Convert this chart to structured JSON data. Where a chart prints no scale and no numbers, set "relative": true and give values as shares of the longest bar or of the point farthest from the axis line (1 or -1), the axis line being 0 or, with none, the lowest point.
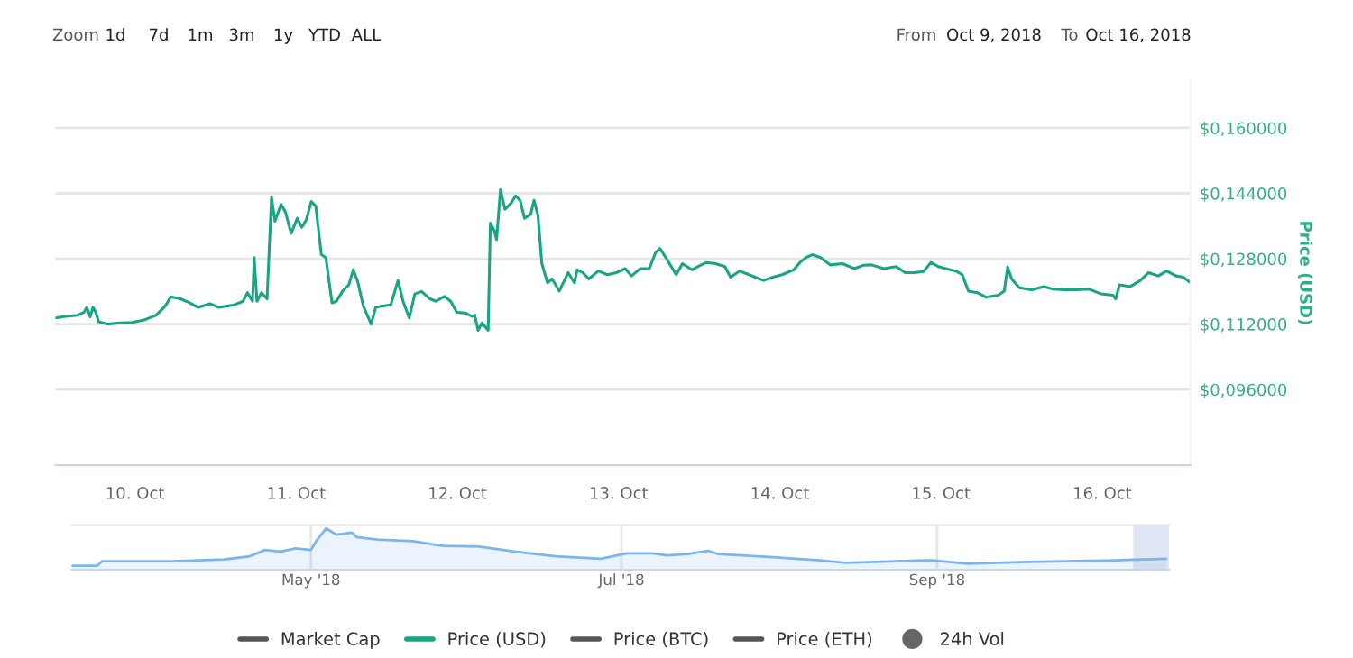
{
  "chart_data": [
    {
      "type": "line",
      "ylabel": "Price (USD)",
      "annotations": [
        "Zoom",
        "1d",
        "7d",
        "1m",
        "3m",
        "1y",
        "YTD",
        "ALL",
        "From",
        "Oct 9, 2018",
        "To",
        "Oct 16, 2018"
      ],
      "x": [
        "2018-10-09T12:10",
        "2018-10-09T13:40",
        "2018-10-09T15:30",
        "2018-10-09T16:25",
        "2018-10-09T16:50",
        "2018-10-09T17:20",
        "2018-10-09T17:45",
        "2018-10-09T18:10",
        "2018-10-09T18:35",
        "2018-10-09T19:55",
        "2018-10-09T21:45",
        "2018-10-09T23:35",
        "2018-10-10T01:20",
        "2018-10-10T03:10",
        "2018-10-10T04:30",
        "2018-10-10T05:20",
        "2018-10-10T06:45",
        "2018-10-10T08:05",
        "2018-10-10T09:25",
        "2018-10-10T11:10",
        "2018-10-10T12:30",
        "2018-10-10T14:45",
        "2018-10-10T16:05",
        "2018-10-10T16:45",
        "2018-10-10T17:30",
        "2018-10-10T17:45",
        "2018-10-10T18:10",
        "2018-10-10T18:50",
        "2018-10-10T19:40",
        "2018-10-10T20:20",
        "2018-10-10T20:50",
        "2018-10-10T21:45",
        "2018-10-10T22:25",
        "2018-10-10T23:15",
        "2018-10-11T00:10",
        "2018-10-11T00:50",
        "2018-10-11T01:30",
        "2018-10-11T02:15",
        "2018-10-11T02:55",
        "2018-10-11T03:45",
        "2018-10-11T04:25",
        "2018-10-11T05:20",
        "2018-10-11T06:00",
        "2018-10-11T06:55",
        "2018-10-11T07:50",
        "2018-10-11T08:30",
        "2018-10-11T09:10",
        "2018-10-11T10:00",
        "2018-10-11T11:10",
        "2018-10-11T11:50",
        "2018-10-11T12:40",
        "2018-10-11T14:05",
        "2018-10-11T15:10",
        "2018-10-11T15:55",
        "2018-10-11T16:50",
        "2018-10-11T17:40",
        "2018-10-11T18:40",
        "2018-10-11T19:55",
        "2018-10-11T20:50",
        "2018-10-11T22:05",
        "2018-10-11T23:00",
        "2018-10-11T23:55",
        "2018-10-12T01:15",
        "2018-10-12T02:10",
        "2018-10-12T02:35",
        "2018-10-12T03:05",
        "2018-10-12T03:40",
        "2018-10-12T04:35",
        "2018-10-12T04:55",
        "2018-10-12T05:30",
        "2018-10-12T05:50",
        "2018-10-12T06:25",
        "2018-10-12T07:05",
        "2018-10-12T08:00",
        "2018-10-12T08:40",
        "2018-10-12T09:20",
        "2018-10-12T10:00",
        "2018-10-12T10:55",
        "2018-10-12T11:25",
        "2018-10-12T12:00",
        "2018-10-12T12:35",
        "2018-10-12T13:25",
        "2018-10-12T14:05",
        "2018-10-12T15:10",
        "2018-10-12T16:30",
        "2018-10-12T17:25",
        "2018-10-12T17:50",
        "2018-10-12T18:40",
        "2018-10-12T19:35",
        "2018-10-12T21:00",
        "2018-10-12T22:20",
        "2018-10-12T23:40",
        "2018-10-13T01:00",
        "2018-10-13T01:55",
        "2018-10-13T03:15",
        "2018-10-13T04:35",
        "2018-10-13T05:30",
        "2018-10-13T06:10",
        "2018-10-13T07:20",
        "2018-10-13T08:35",
        "2018-10-13T09:30",
        "2018-10-13T10:55",
        "2018-10-13T11:50",
        "2018-10-13T13:05",
        "2018-10-13T14:25",
        "2018-10-13T15:50",
        "2018-10-13T16:40",
        "2018-10-13T18:00",
        "2018-10-13T19:25",
        "2018-10-13T20:20",
        "2018-10-13T21:35",
        "2018-10-13T23:00",
        "2018-10-14T00:20",
        "2018-10-14T02:05",
        "2018-10-14T03:00",
        "2018-10-14T03:55",
        "2018-10-14T04:50",
        "2018-10-14T06:05",
        "2018-10-14T07:30",
        "2018-10-14T09:20",
        "2018-10-14T11:05",
        "2018-10-14T12:25",
        "2018-10-14T13:40",
        "2018-10-14T15:30",
        "2018-10-14T17:20",
        "2018-10-14T18:40",
        "2018-10-14T20:00",
        "2018-10-14T21:25",
        "2018-10-14T22:30",
        "2018-10-14T23:35",
        "2018-10-15T02:20",
        "2018-10-15T03:10",
        "2018-10-15T04:05",
        "2018-10-15T05:25",
        "2018-10-15T06:40",
        "2018-10-15T08:30",
        "2018-10-15T09:25",
        "2018-10-15T09:55",
        "2018-10-15T10:30",
        "2018-10-15T11:40",
        "2018-10-15T13:30",
        "2018-10-15T15:20",
        "2018-10-15T16:35",
        "2018-10-15T18:25",
        "2018-10-15T20:10",
        "2018-10-15T22:00",
        "2018-10-15T23:50",
        "2018-10-16T01:35",
        "2018-10-16T02:00",
        "2018-10-16T02:35",
        "2018-10-16T04:10",
        "2018-10-16T05:35",
        "2018-10-16T06:55",
        "2018-10-16T08:20",
        "2018-10-16T09:35",
        "2018-10-16T11:00",
        "2018-10-16T12:05",
        "2018-10-16T13:00"
      ],
      "series": [
        {
          "name": "Market Cap",
          "color": "#555555",
          "values": [
            null,
            null,
            null,
            null,
            null,
            null,
            null,
            null,
            null,
            null,
            null,
            null,
            null,
            null,
            null,
            null,
            null,
            null,
            null,
            null,
            null,
            null,
            null,
            null,
            null,
            null,
            null,
            null,
            null,
            null,
            null,
            null,
            null,
            null,
            null,
            null,
            null,
            null,
            null,
            null,
            null,
            null,
            null,
            null,
            null,
            null,
            null,
            null,
            null,
            null,
            null,
            null,
            null,
            null,
            null,
            null,
            null,
            null,
            null,
            null,
            null,
            null,
            null,
            null,
            null,
            null,
            null,
            null,
            null,
            null,
            null,
            null,
            null,
            null,
            null,
            null,
            null,
            null,
            null,
            null,
            null,
            null,
            null,
            null,
            null,
            null,
            null,
            null,
            null,
            null,
            null,
            null,
            null,
            null,
            null,
            null,
            null,
            null,
            null,
            null,
            null,
            null,
            null,
            null,
            null,
            null,
            null,
            null,
            null,
            null,
            null,
            null,
            null,
            null,
            null,
            null,
            null,
            null,
            null,
            null,
            null,
            null,
            null,
            null,
            null,
            null,
            null,
            null,
            null,
            null,
            null,
            null,
            null,
            null,
            null,
            null,
            null,
            null,
            null,
            null,
            null,
            null,
            null,
            null,
            null,
            null,
            null,
            null,
            null,
            null,
            null,
            null,
            null,
            null,
            null,
            null,
            null,
            null
          ]
        },
        {
          "name": "Price (USD)",
          "color": "#17a583",
          "values": [
            0.1135,
            0.1139,
            0.1142,
            0.1149,
            0.1161,
            0.1138,
            0.1161,
            0.1149,
            0.1126,
            0.112,
            0.1123,
            0.1124,
            0.113,
            0.1142,
            0.1164,
            0.1187,
            0.1182,
            0.1173,
            0.1161,
            0.117,
            0.1161,
            0.1167,
            0.1176,
            0.1197,
            0.1176,
            0.1283,
            0.1176,
            0.1197,
            0.1182,
            0.1431,
            0.1372,
            0.1413,
            0.1394,
            0.1342,
            0.1379,
            0.1357,
            0.1375,
            0.142,
            0.1409,
            0.129,
            0.1283,
            0.1172,
            0.1176,
            0.1201,
            0.1216,
            0.1253,
            0.1224,
            0.1164,
            0.112,
            0.1161,
            0.1164,
            0.1167,
            0.1227,
            0.1176,
            0.1135,
            0.1194,
            0.12,
            0.1182,
            0.1176,
            0.1188,
            0.1176,
            0.1149,
            0.1147,
            0.1139,
            0.1142,
            0.1105,
            0.1123,
            0.1105,
            0.1367,
            0.1349,
            0.1327,
            0.1449,
            0.1401,
            0.1416,
            0.1434,
            0.1423,
            0.1379,
            0.1389,
            0.1423,
            0.1386,
            0.1268,
            0.1221,
            0.1231,
            0.1201,
            0.1246,
            0.1221,
            0.1253,
            0.1246,
            0.1231,
            0.125,
            0.1241,
            0.1246,
            0.1256,
            0.1238,
            0.1256,
            0.1256,
            0.1295,
            0.1305,
            0.1275,
            0.1241,
            0.1268,
            0.1253,
            0.1261,
            0.1271,
            0.1268,
            0.1261,
            0.1235,
            0.125,
            0.1241,
            0.1235,
            0.1227,
            0.1235,
            0.1241,
            0.1253,
            0.1271,
            0.1283,
            0.129,
            0.1283,
            0.1265,
            0.1268,
            0.1256,
            0.1264,
            0.1265,
            0.1256,
            0.1261,
            0.1246,
            0.1246,
            0.1249,
            0.1271,
            0.1261,
            0.1249,
            0.1241,
            0.1201,
            0.1197,
            0.1186,
            0.1191,
            0.1201,
            0.126,
            0.1231,
            0.1209,
            0.1204,
            0.1212,
            0.1206,
            0.1204,
            0.1204,
            0.1206,
            0.1194,
            0.1191,
            0.1182,
            0.1216,
            0.1212,
            0.1226,
            0.1246,
            0.1238,
            0.125,
            0.1238,
            0.1235,
            0.1223
          ]
        },
        {
          "name": "Price (BTC)",
          "color": "#555555",
          "values": [
            null,
            null,
            null,
            null,
            null,
            null,
            null,
            null,
            null,
            null,
            null,
            null,
            null,
            null,
            null,
            null,
            null,
            null,
            null,
            null,
            null,
            null,
            null,
            null,
            null,
            null,
            null,
            null,
            null,
            null,
            null,
            null,
            null,
            null,
            null,
            null,
            null,
            null,
            null,
            null,
            null,
            null,
            null,
            null,
            null,
            null,
            null,
            null,
            null,
            null,
            null,
            null,
            null,
            null,
            null,
            null,
            null,
            null,
            null,
            null,
            null,
            null,
            null,
            null,
            null,
            null,
            null,
            null,
            null,
            null,
            null,
            null,
            null,
            null,
            null,
            null,
            null,
            null,
            null,
            null,
            null,
            null,
            null,
            null,
            null,
            null,
            null,
            null,
            null,
            null,
            null,
            null,
            null,
            null,
            null,
            null,
            null,
            null,
            null,
            null,
            null,
            null,
            null,
            null,
            null,
            null,
            null,
            null,
            null,
            null,
            null,
            null,
            null,
            null,
            null,
            null,
            null,
            null,
            null,
            null,
            null,
            null,
            null,
            null,
            null,
            null,
            null,
            null,
            null,
            null,
            null,
            null,
            null,
            null,
            null,
            null,
            null,
            null,
            null,
            null,
            null,
            null,
            null,
            null,
            null,
            null,
            null,
            null,
            null,
            null,
            null,
            null,
            null,
            null,
            null,
            null,
            null,
            null
          ]
        },
        {
          "name": "Price (ETH)",
          "color": "#555555",
          "values": [
            null,
            null,
            null,
            null,
            null,
            null,
            null,
            null,
            null,
            null,
            null,
            null,
            null,
            null,
            null,
            null,
            null,
            null,
            null,
            null,
            null,
            null,
            null,
            null,
            null,
            null,
            null,
            null,
            null,
            null,
            null,
            null,
            null,
            null,
            null,
            null,
            null,
            null,
            null,
            null,
            null,
            null,
            null,
            null,
            null,
            null,
            null,
            null,
            null,
            null,
            null,
            null,
            null,
            null,
            null,
            null,
            null,
            null,
            null,
            null,
            null,
            null,
            null,
            null,
            null,
            null,
            null,
            null,
            null,
            null,
            null,
            null,
            null,
            null,
            null,
            null,
            null,
            null,
            null,
            null,
            null,
            null,
            null,
            null,
            null,
            null,
            null,
            null,
            null,
            null,
            null,
            null,
            null,
            null,
            null,
            null,
            null,
            null,
            null,
            null,
            null,
            null,
            null,
            null,
            null,
            null,
            null,
            null,
            null,
            null,
            null,
            null,
            null,
            null,
            null,
            null,
            null,
            null,
            null,
            null,
            null,
            null,
            null,
            null,
            null,
            null,
            null,
            null,
            null,
            null,
            null,
            null,
            null,
            null,
            null,
            null,
            null,
            null,
            null,
            null,
            null,
            null,
            null,
            null,
            null,
            null,
            null,
            null,
            null,
            null,
            null,
            null,
            null,
            null,
            null,
            null,
            null,
            null
          ]
        },
        {
          "name": "24h Vol",
          "color": "#666666",
          "type": "scatter",
          "values": [
            null,
            null,
            null,
            null,
            null,
            null,
            null,
            null,
            null,
            null,
            null,
            null,
            null,
            null,
            null,
            null,
            null,
            null,
            null,
            null,
            null,
            null,
            null,
            null,
            null,
            null,
            null,
            null,
            null,
            null,
            null,
            null,
            null,
            null,
            null,
            null,
            null,
            null,
            null,
            null,
            null,
            null,
            null,
            null,
            null,
            null,
            null,
            null,
            null,
            null,
            null,
            null,
            null,
            null,
            null,
            null,
            null,
            null,
            null,
            null,
            null,
            null,
            null,
            null,
            null,
            null,
            null,
            null,
            null,
            null,
            null,
            null,
            null,
            null,
            null,
            null,
            null,
            null,
            null,
            null,
            null,
            null,
            null,
            null,
            null,
            null,
            null,
            null,
            null,
            null,
            null,
            null,
            null,
            null,
            null,
            null,
            null,
            null,
            null,
            null,
            null,
            null,
            null,
            null,
            null,
            null,
            null,
            null,
            null,
            null,
            null,
            null,
            null,
            null,
            null,
            null,
            null,
            null,
            null,
            null,
            null,
            null,
            null,
            null,
            null,
            null,
            null,
            null,
            null,
            null,
            null,
            null,
            null,
            null,
            null,
            null,
            null,
            null,
            null,
            null,
            null,
            null,
            null,
            null,
            null,
            null,
            null,
            null,
            null,
            null,
            null,
            null,
            null,
            null,
            null,
            null,
            null,
            null
          ]
        }
      ],
      "xlim": [
        "2018-10-09T12:10",
        "2018-10-16T13:10"
      ],
      "xticks": [
        {
          "value": "2018-10-10",
          "label": "10. Oct"
        },
        {
          "value": "2018-10-11",
          "label": "11. Oct"
        },
        {
          "value": "2018-10-12",
          "label": "12. Oct"
        },
        {
          "value": "2018-10-13",
          "label": "13. Oct"
        },
        {
          "value": "2018-10-14",
          "label": "14. Oct"
        },
        {
          "value": "2018-10-15",
          "label": "15. Oct"
        },
        {
          "value": "2018-10-16",
          "label": "16. Oct"
        }
      ],
      "ylim": [
        0.0775,
        0.1715
      ],
      "yticks": [
        {
          "value": 0.096,
          "label": "$0,096000"
        },
        {
          "value": 0.112,
          "label": "$0,112000"
        },
        {
          "value": 0.128,
          "label": "$0,128000"
        },
        {
          "value": 0.144,
          "label": "$0,144000"
        },
        {
          "value": 0.16,
          "label": "$0,160000"
        }
      ],
      "grid": "y",
      "legend": "bottom"
    },
    {
      "type": "area",
      "relative": true,
      "tick_labels": "x",
      "grid": "x",
      "x": [
        "2018-03-15",
        "2018-03-20",
        "2018-03-21",
        "2018-04-04",
        "2018-04-14",
        "2018-04-19",
        "2018-04-22",
        "2018-04-25",
        "2018-04-28",
        "2018-05-01",
        "2018-05-02",
        "2018-05-04",
        "2018-05-06",
        "2018-05-09",
        "2018-05-10",
        "2018-05-14",
        "2018-05-21",
        "2018-05-27",
        "2018-06-03",
        "2018-06-10",
        "2018-06-18",
        "2018-06-27",
        "2018-07-02",
        "2018-07-07",
        "2018-07-10",
        "2018-07-14",
        "2018-07-18",
        "2018-07-20",
        "2018-07-30",
        "2018-08-09",
        "2018-08-14",
        "2018-08-24",
        "2018-08-31",
        "2018-09-07",
        "2018-09-19",
        "2018-10-06",
        "2018-10-16"
      ],
      "series": [
        {
          "color": "#7cb5ec",
          "values": [
            0.1,
            0.1,
            0.21,
            0.21,
            0.25,
            0.33,
            0.48,
            0.44,
            0.52,
            0.48,
            0.69,
            1.0,
            0.85,
            0.9,
            0.79,
            0.73,
            0.69,
            0.58,
            0.56,
            0.44,
            0.33,
            0.27,
            0.4,
            0.4,
            0.35,
            0.38,
            0.46,
            0.38,
            0.31,
            0.23,
            0.17,
            0.21,
            0.23,
            0.15,
            0.19,
            0.23,
            0.27
          ]
        }
      ],
      "xlim": [
        "2018-03-15",
        "2018-10-16T13:10"
      ],
      "xticks": [
        {
          "value": "2018-05-01",
          "label": "May '18"
        },
        {
          "value": "2018-07-01",
          "label": "Jul '18"
        },
        {
          "value": "2018-09-01",
          "label": "Sep '18"
        }
      ],
      "bands": [
        {
          "axis": "x",
          "from": "2018-10-09T12:10",
          "to": "2018-10-16T13:10",
          "color": "#ccd6eb"
        }
      ]
    }
  ]
}
